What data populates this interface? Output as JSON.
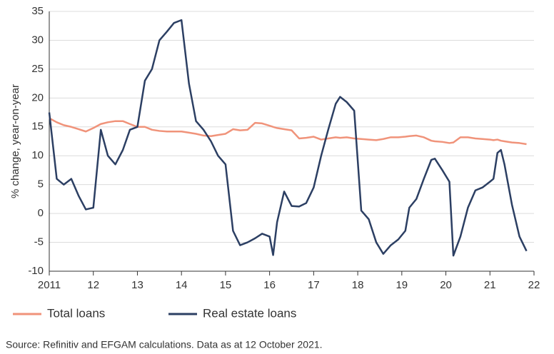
{
  "chart_data": {
    "type": "line",
    "y_label": "% change, year-on-year",
    "source": "Source: Refinitiv and EFGAM calculations. Data as at 12 October 2021.",
    "x": [
      2011,
      2011.17,
      2011.33,
      2011.5,
      2011.67,
      2011.83,
      2012,
      2012.17,
      2012.33,
      2012.5,
      2012.67,
      2012.83,
      2013,
      2013.17,
      2013.33,
      2013.5,
      2013.67,
      2013.83,
      2014,
      2014.17,
      2014.33,
      2014.5,
      2014.67,
      2014.83,
      2015,
      2015.17,
      2015.33,
      2015.5,
      2015.67,
      2015.83,
      2016,
      2016.08,
      2016.17,
      2016.33,
      2016.5,
      2016.67,
      2016.83,
      2017,
      2017.17,
      2017.33,
      2017.5,
      2017.6,
      2017.75,
      2017.92,
      2018.08,
      2018.25,
      2018.42,
      2018.58,
      2018.75,
      2018.92,
      2019.08,
      2019.17,
      2019.33,
      2019.5,
      2019.67,
      2019.75,
      2019.92,
      2020.08,
      2020.17,
      2020.33,
      2020.5,
      2020.67,
      2020.83,
      2021,
      2021.08,
      2021.17,
      2021.25,
      2021.33,
      2021.5,
      2021.67,
      2021.83
    ],
    "series": [
      {
        "name": "Total loans",
        "color": "#f0937a",
        "values": [
          16.5,
          15.8,
          15.3,
          15,
          14.6,
          14.2,
          14.8,
          15.5,
          15.8,
          16,
          16,
          15.5,
          15,
          15,
          14.5,
          14.3,
          14.2,
          14.2,
          14.2,
          14,
          13.8,
          13.5,
          13.4,
          13.6,
          13.8,
          14.6,
          14.4,
          14.5,
          15.7,
          15.6,
          15.2,
          15,
          14.8,
          14.6,
          14.4,
          13,
          13.1,
          13.3,
          12.8,
          13,
          13.2,
          13.1,
          13.2,
          13,
          12.9,
          12.8,
          12.7,
          12.9,
          13.2,
          13.2,
          13.3,
          13.4,
          13.5,
          13.2,
          12.6,
          12.5,
          12.4,
          12.2,
          12.3,
          13.2,
          13.2,
          13,
          12.9,
          12.8,
          12.7,
          12.8,
          12.6,
          12.5,
          12.3,
          12.2,
          12
        ]
      },
      {
        "name": "Real estate loans",
        "color": "#2c3f63",
        "values": [
          17.5,
          6,
          5,
          6,
          3,
          0.7,
          1,
          14.5,
          10,
          8.5,
          11,
          14.5,
          15,
          23,
          25,
          30,
          31.5,
          33,
          33.5,
          22.5,
          16,
          14.5,
          12.5,
          10,
          8.5,
          -3,
          -5.5,
          -5,
          -4.3,
          -3.5,
          -4,
          -7.2,
          -1.5,
          3.8,
          1.3,
          1.2,
          1.8,
          4.5,
          10,
          14.5,
          19,
          20.2,
          19.3,
          17.8,
          0.5,
          -1,
          -5,
          -7,
          -5.5,
          -4.5,
          -3,
          1,
          2.5,
          6,
          9.3,
          9.5,
          7.5,
          5.5,
          -7.3,
          -4,
          1,
          4,
          4.5,
          5.5,
          6,
          10.5,
          11,
          8.5,
          1.5,
          -4,
          -6.5
        ]
      }
    ],
    "xlim": [
      2011,
      2022
    ],
    "xticks": [
      2011,
      {
        "value": 2012,
        "label": "12"
      },
      {
        "value": 2013,
        "label": "13"
      },
      {
        "value": 2014,
        "label": "14"
      },
      {
        "value": 2015,
        "label": "15"
      },
      {
        "value": 2016,
        "label": "16"
      },
      {
        "value": 2017,
        "label": "17"
      },
      {
        "value": 2018,
        "label": "18"
      },
      {
        "value": 2019,
        "label": "19"
      },
      {
        "value": 2020,
        "label": "20"
      },
      {
        "value": 2021,
        "label": "21"
      },
      {
        "value": 2022,
        "label": "22"
      }
    ],
    "ylim": [
      -10,
      35
    ],
    "yticks": [
      -10,
      -5,
      0,
      5,
      10,
      15,
      20,
      25,
      30,
      35
    ],
    "grid": true,
    "legend": "bottom"
  }
}
